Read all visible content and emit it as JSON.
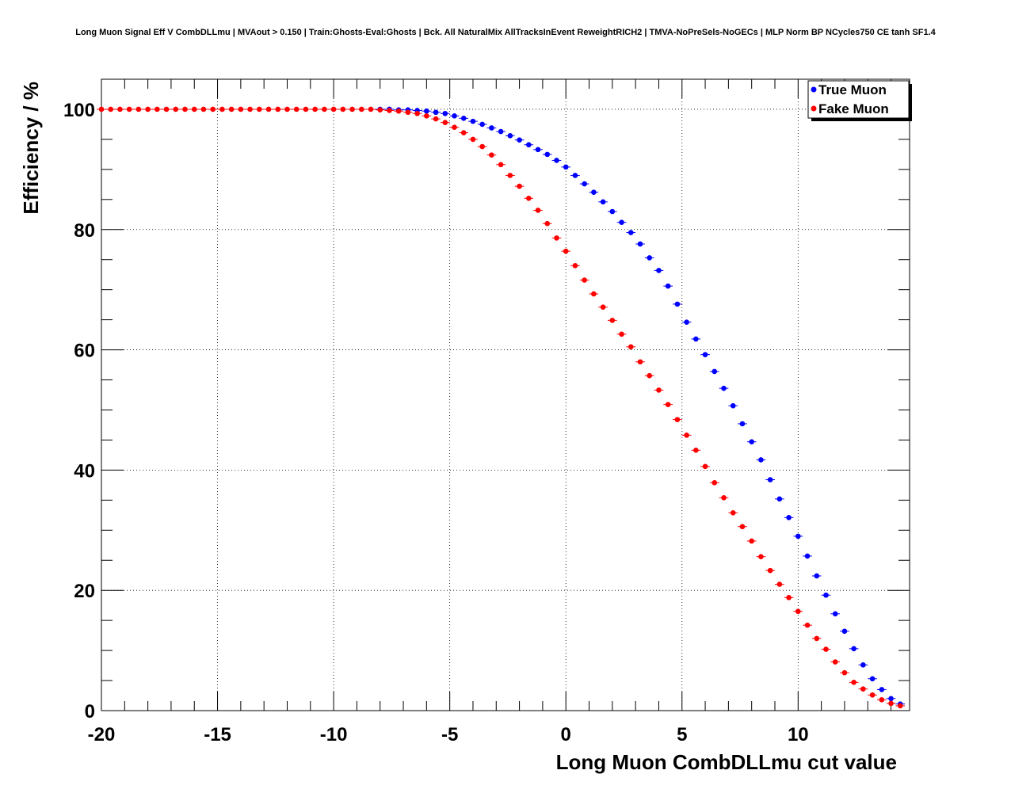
{
  "chart_data": {
    "type": "scatter",
    "title": "Long Muon Signal Eff V CombDLLmu | MVAout > 0.150 | Train:Ghosts-Eval:Ghosts | Bck. All NaturalMix AllTracksInEvent ReweightRICH2 | TMVA-NoPreSels-NoGECs | MLP Norm BP NCycles750 CE tanh SF1.4",
    "xlabel": "Long Muon CombDLLmu cut value",
    "ylabel": "Efficiency / %",
    "xlim": [
      -20,
      14.8
    ],
    "ylim": [
      0,
      105
    ],
    "xticks": [
      -20,
      -15,
      -10,
      -5,
      0,
      5,
      10
    ],
    "xtick_labels": [
      "-20",
      "-15",
      "-10",
      "-5",
      "0",
      "5",
      "10"
    ],
    "yticks": [
      0,
      20,
      40,
      60,
      80,
      100
    ],
    "ytick_labels": [
      "0",
      "20",
      "40",
      "60",
      "80",
      "100"
    ],
    "grid": true,
    "legend_position": "top-right",
    "series": [
      {
        "name": "True Muon",
        "color": "#0000ff",
        "x": [
          -8.0,
          -7.6,
          -7.2,
          -6.8,
          -6.4,
          -6.0,
          -5.6,
          -5.2,
          -4.8,
          -4.4,
          -4.0,
          -3.6,
          -3.2,
          -2.8,
          -2.4,
          -2.0,
          -1.6,
          -1.2,
          -0.8,
          -0.4,
          0.0,
          0.4,
          0.8,
          1.2,
          1.6,
          2.0,
          2.4,
          2.8,
          3.2,
          3.6,
          4.0,
          4.4,
          4.8,
          5.2,
          5.6,
          6.0,
          6.4,
          6.8,
          7.2,
          7.6,
          8.0,
          8.4,
          8.8,
          9.2,
          9.6,
          10.0,
          10.4,
          10.8,
          11.2,
          11.6,
          12.0,
          12.4,
          12.8,
          13.2,
          13.6,
          14.0,
          14.4
        ],
        "y": [
          100.0,
          100.0,
          99.9,
          99.9,
          99.8,
          99.7,
          99.5,
          99.3,
          98.9,
          98.5,
          98.0,
          97.5,
          96.9,
          96.3,
          95.6,
          94.9,
          94.1,
          93.3,
          92.5,
          91.5,
          90.4,
          89.0,
          87.6,
          86.2,
          84.6,
          83.0,
          81.2,
          79.5,
          77.6,
          75.3,
          73.2,
          70.6,
          67.6,
          64.6,
          61.8,
          59.2,
          56.4,
          53.6,
          50.7,
          47.7,
          44.7,
          41.7,
          38.4,
          35.2,
          32.1,
          29.0,
          25.7,
          22.4,
          19.2,
          16.1,
          13.2,
          10.3,
          7.6,
          5.3,
          3.5,
          2.0,
          1.1
        ]
      },
      {
        "name": "Fake Muon",
        "color": "#ff0000",
        "x": [
          -20.0,
          -19.6,
          -19.2,
          -18.8,
          -18.4,
          -18.0,
          -17.6,
          -17.2,
          -16.8,
          -16.4,
          -16.0,
          -15.6,
          -15.2,
          -14.8,
          -14.4,
          -14.0,
          -13.6,
          -13.2,
          -12.8,
          -12.4,
          -12.0,
          -11.6,
          -11.2,
          -10.8,
          -10.4,
          -10.0,
          -9.6,
          -9.2,
          -8.8,
          -8.4,
          -8.0,
          -7.6,
          -7.2,
          -6.8,
          -6.4,
          -6.0,
          -5.6,
          -5.2,
          -4.8,
          -4.4,
          -4.0,
          -3.6,
          -3.2,
          -2.8,
          -2.4,
          -2.0,
          -1.6,
          -1.2,
          -0.8,
          -0.4,
          0.0,
          0.4,
          0.8,
          1.2,
          1.6,
          2.0,
          2.4,
          2.8,
          3.2,
          3.6,
          4.0,
          4.4,
          4.8,
          5.2,
          5.6,
          6.0,
          6.4,
          6.8,
          7.2,
          7.6,
          8.0,
          8.4,
          8.8,
          9.2,
          9.6,
          10.0,
          10.4,
          10.8,
          11.2,
          11.6,
          12.0,
          12.4,
          12.8,
          13.2,
          13.6,
          14.0,
          14.4
        ],
        "y": [
          100.0,
          100.0,
          100.0,
          100.0,
          100.0,
          100.0,
          100.0,
          100.0,
          100.0,
          100.0,
          100.0,
          100.0,
          100.0,
          100.0,
          100.0,
          100.0,
          100.0,
          100.0,
          100.0,
          100.0,
          100.0,
          100.0,
          100.0,
          100.0,
          100.0,
          100.0,
          100.0,
          100.0,
          100.0,
          100.0,
          99.9,
          99.8,
          99.7,
          99.5,
          99.3,
          98.9,
          98.4,
          97.8,
          97.0,
          96.1,
          95.0,
          93.8,
          92.4,
          90.8,
          89.0,
          87.2,
          85.2,
          83.2,
          81.0,
          78.6,
          76.4,
          74.0,
          71.6,
          69.3,
          67.1,
          64.9,
          62.6,
          60.5,
          58.0,
          55.7,
          53.3,
          50.9,
          48.4,
          45.8,
          43.3,
          40.6,
          37.9,
          35.4,
          32.9,
          30.6,
          28.2,
          25.6,
          23.3,
          21.0,
          18.8,
          16.5,
          14.2,
          12.0,
          10.2,
          8.1,
          6.3,
          4.7,
          3.6,
          2.6,
          1.8,
          1.2,
          0.8
        ]
      }
    ]
  }
}
